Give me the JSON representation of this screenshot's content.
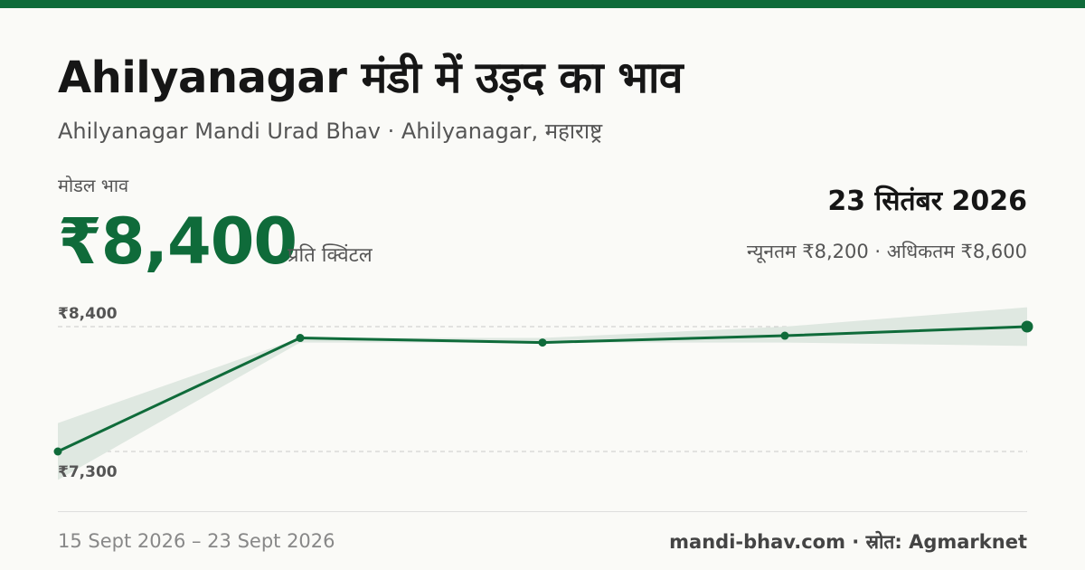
{
  "header": {
    "title": "Ahilyanagar मंडी में उड़द का भाव",
    "subtitle": "Ahilyanagar Mandi Urad Bhav · Ahilyanagar, महाराष्ट्र"
  },
  "price": {
    "label": "मोडल भाव",
    "value": "₹8,400",
    "unit": "प्रति क्विंटल"
  },
  "summary": {
    "date": "23 सितंबर 2026",
    "range": "न्यूनतम ₹8,200 · अधिकतम ₹8,600"
  },
  "footer": {
    "date_range": "15 Sept 2026 – 23 Sept 2026",
    "source": "mandi-bhav.com · स्रोत: Agmarknet"
  },
  "colors": {
    "accent": "#0f6b3a",
    "band": "#dfe8e1"
  },
  "chart_data": {
    "type": "line",
    "ylim": [
      7300,
      8400
    ],
    "ytick_labels": [
      "₹8,400",
      "₹7,300"
    ],
    "ytick_values": [
      8400,
      7300
    ],
    "series": [
      {
        "values": [
          7300,
          8300,
          8260,
          8320,
          8400
        ],
        "min": [
          7050,
          8260,
          8260,
          8260,
          8230
        ],
        "max": [
          7550,
          8300,
          8300,
          8400,
          8570
        ]
      }
    ]
  }
}
